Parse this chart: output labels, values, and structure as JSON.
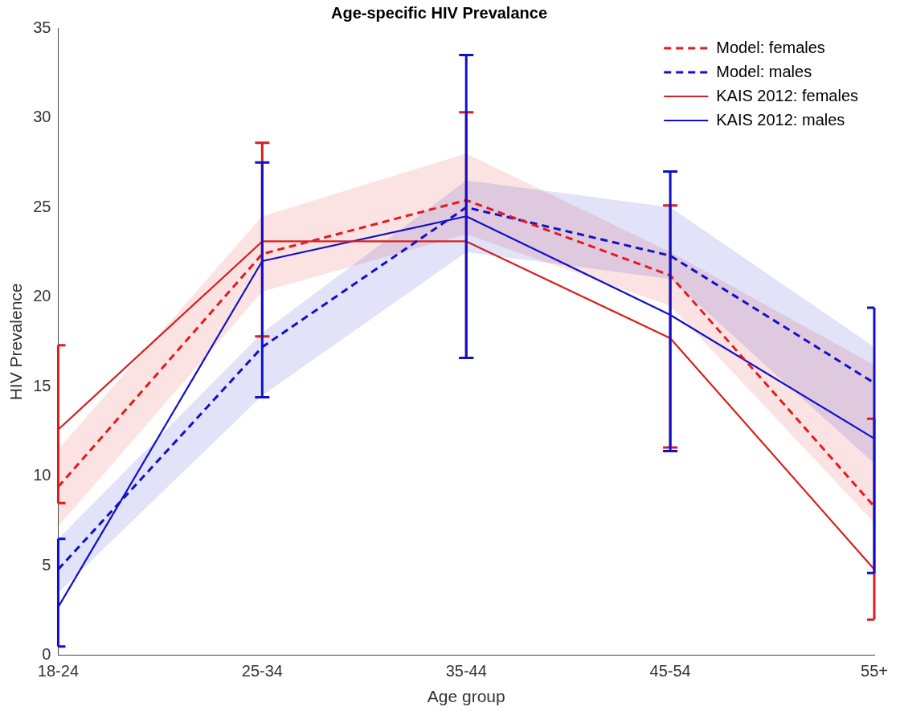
{
  "chart_data": {
    "type": "line",
    "title": "Age-specific HIV Prevalance",
    "xlabel": "Age group",
    "ylabel": "HIV Prevalence",
    "categories": [
      "18-24",
      "25-34",
      "35-44",
      "45-54",
      "55+"
    ],
    "ylim": [
      0,
      35
    ],
    "yticks": [
      0,
      5,
      10,
      15,
      20,
      25,
      30,
      35
    ],
    "grid": false,
    "legend": "top right",
    "marker": "none",
    "series": [
      {
        "name": "Model: females",
        "color": "#e41a1c",
        "line_style": "dashed",
        "values": [
          9.4,
          22.4,
          25.4,
          21.2,
          8.3
        ],
        "lower": [
          7.2,
          20.3,
          23.5,
          19.5,
          7.4
        ],
        "upper": [
          11.5,
          24.5,
          28,
          22.5,
          16.2
        ]
      },
      {
        "name": "Model: males",
        "color": "#1010c8",
        "line_style": "dashed",
        "values": [
          4.8,
          17.2,
          25,
          22.3,
          15.2
        ],
        "lower": [
          3.5,
          14.5,
          22.5,
          21,
          10.7
        ],
        "upper": [
          6.5,
          18,
          26.5,
          25,
          17.2
        ]
      },
      {
        "name": "KAIS 2012: females",
        "color": "#d42020",
        "line_style": "solid",
        "values": [
          12.6,
          23.1,
          23.1,
          17.7,
          4.8
        ],
        "errors": [
          [
            8.5,
            17.3
          ],
          [
            17.8,
            28.6
          ],
          [
            16.6,
            30.3
          ],
          [
            11.6,
            25.1
          ],
          [
            2,
            13.2
          ]
        ]
      },
      {
        "name": "KAIS 2012: males",
        "color": "#1010c8",
        "line_style": "solid",
        "values": [
          2.7,
          22,
          24.5,
          19,
          12.1
        ],
        "errors": [
          [
            0.5,
            6.5
          ],
          [
            14.4,
            27.5
          ],
          [
            16.6,
            33.5
          ],
          [
            11.4,
            27
          ],
          [
            4.6,
            19.4
          ]
        ]
      }
    ]
  }
}
